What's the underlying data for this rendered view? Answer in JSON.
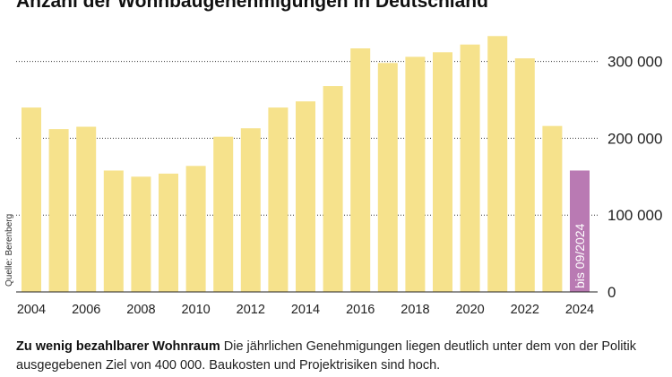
{
  "chart_data": {
    "type": "bar",
    "title": "Anzahl der Wohnbaugenehmigungen in Deutschland",
    "source": "Quelle: Berenberg",
    "x": [
      2004,
      2005,
      2006,
      2007,
      2008,
      2009,
      2010,
      2011,
      2012,
      2013,
      2014,
      2015,
      2016,
      2017,
      2018,
      2019,
      2020,
      2021,
      2022,
      2023,
      2024
    ],
    "values": [
      240000,
      212000,
      215000,
      158000,
      150000,
      154000,
      164000,
      202000,
      213000,
      240000,
      248000,
      268000,
      317000,
      298000,
      306000,
      312000,
      322000,
      333000,
      304000,
      216000,
      158000
    ],
    "xticks": [
      "2004",
      "2006",
      "2008",
      "2010",
      "2012",
      "2014",
      "2016",
      "2018",
      "2020",
      "2022",
      "2024"
    ],
    "yticks": [
      "0",
      "100 000",
      "200 000",
      "300 000"
    ],
    "ytick_values": [
      0,
      100000,
      200000,
      300000
    ],
    "ylim": [
      0,
      340000
    ],
    "grid": "dotted horizontal",
    "highlight": {
      "x": 2024,
      "label": "bis 09/2024"
    },
    "colors": {
      "bar": "#f6e28c",
      "highlight": "#b97ab3",
      "grid": "#333333"
    }
  },
  "caption": {
    "lead": "Zu wenig bezahlbarer Wohnraum",
    "text": " Die jährlichen Genehmigungen liegen deutlich unter dem von der Politik ausgegebenen Ziel von 400 000. Baukosten und Projektrisiken sind hoch."
  }
}
